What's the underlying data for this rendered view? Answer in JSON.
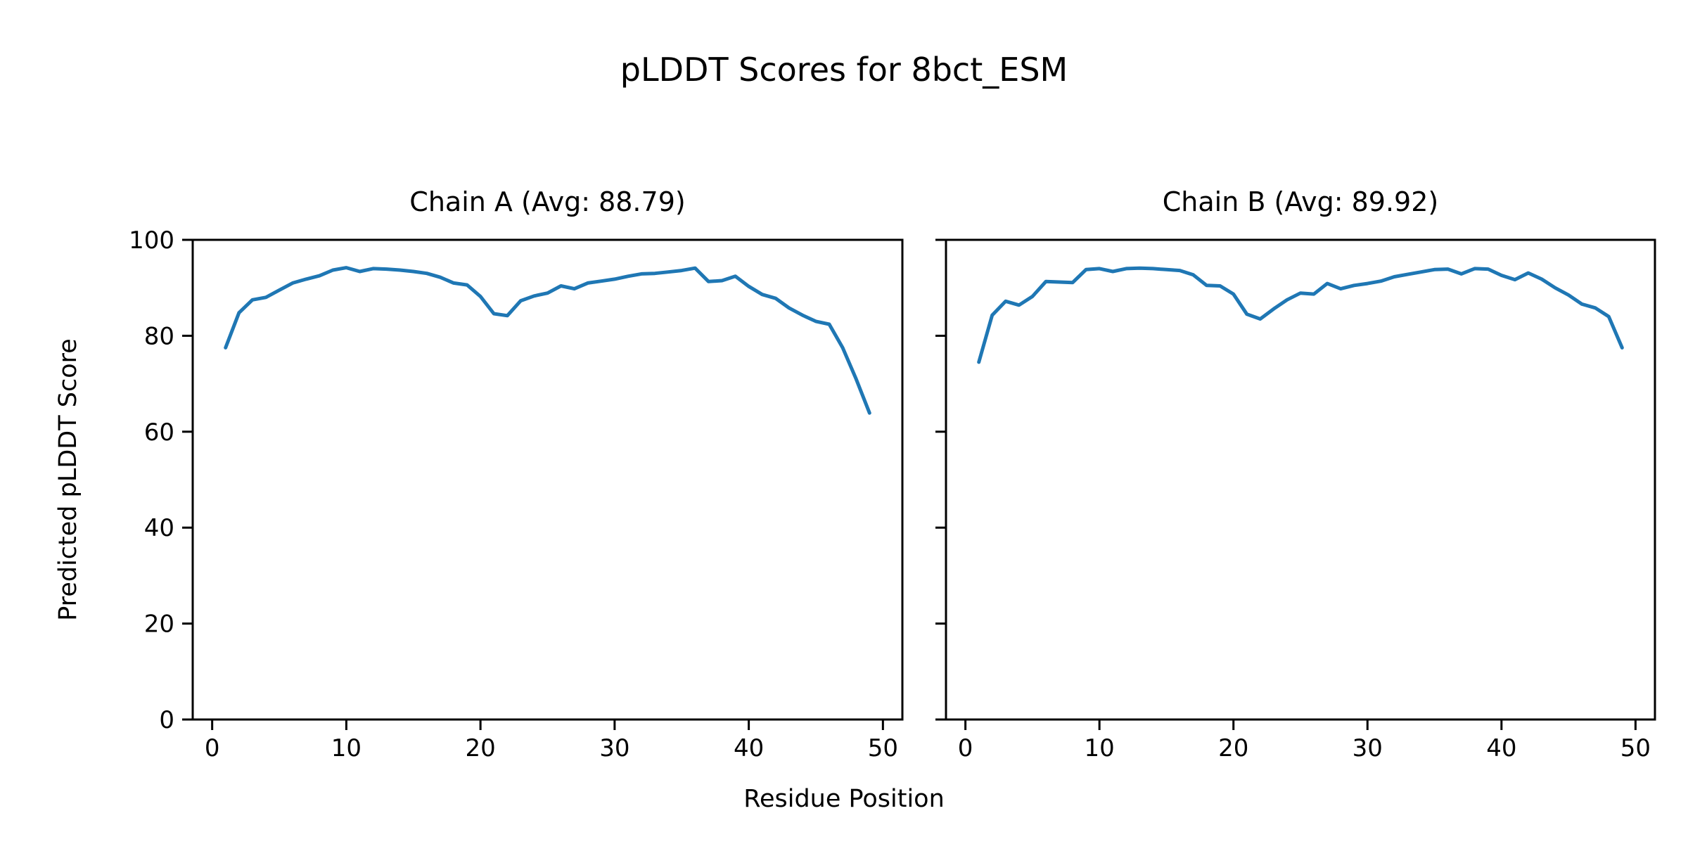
{
  "figure": {
    "title": "pLDDT Scores for 8bct_ESM",
    "xlabel": "Residue Position",
    "ylabel": "Predicted pLDDT Score"
  },
  "chart_data": [
    {
      "type": "line",
      "title": "Chain A (Avg: 88.79)",
      "chain": "A",
      "avg": 88.79,
      "line_color": "#1f77b4",
      "xlabel": "Residue Position",
      "ylabel": "Predicted pLDDT Score",
      "xlim": [
        -1.45,
        51.45
      ],
      "ylim": [
        0,
        100
      ],
      "xticks": [
        0,
        10,
        20,
        30,
        40,
        50
      ],
      "yticks": [
        0,
        20,
        40,
        60,
        80,
        100
      ],
      "grid": false,
      "show_ytick_labels": true,
      "x": [
        1,
        2,
        3,
        4,
        5,
        6,
        7,
        8,
        9,
        10,
        11,
        12,
        13,
        14,
        15,
        16,
        17,
        18,
        19,
        20,
        21,
        22,
        23,
        24,
        25,
        26,
        27,
        28,
        29,
        30,
        31,
        32,
        33,
        34,
        35,
        36,
        37,
        38,
        39,
        40,
        41,
        42,
        43,
        44,
        45,
        46,
        47,
        48,
        49
      ],
      "values": [
        77.5,
        84.8,
        87.5,
        88.0,
        89.5,
        91.0,
        91.8,
        92.5,
        93.7,
        94.2,
        93.4,
        94.0,
        93.9,
        93.7,
        93.4,
        93.0,
        92.2,
        91.0,
        90.6,
        88.2,
        84.6,
        84.2,
        87.3,
        88.3,
        88.9,
        90.4,
        89.8,
        91.0,
        91.4,
        91.8,
        92.4,
        92.9,
        93.0,
        93.3,
        93.6,
        94.1,
        91.3,
        91.5,
        92.4,
        90.3,
        88.6,
        87.8,
        85.8,
        84.3,
        83.0,
        82.4,
        77.5,
        71.0,
        63.9
      ]
    },
    {
      "type": "line",
      "title": "Chain B (Avg: 89.92)",
      "chain": "B",
      "avg": 89.92,
      "line_color": "#1f77b4",
      "xlabel": "Residue Position",
      "ylabel": "Predicted pLDDT Score",
      "xlim": [
        -1.45,
        51.45
      ],
      "ylim": [
        0,
        100
      ],
      "xticks": [
        0,
        10,
        20,
        30,
        40,
        50
      ],
      "yticks": [
        0,
        20,
        40,
        60,
        80,
        100
      ],
      "grid": false,
      "show_ytick_labels": false,
      "x": [
        1,
        2,
        3,
        4,
        5,
        6,
        7,
        8,
        9,
        10,
        11,
        12,
        13,
        14,
        15,
        16,
        17,
        18,
        19,
        20,
        21,
        22,
        23,
        24,
        25,
        26,
        27,
        28,
        29,
        30,
        31,
        32,
        33,
        34,
        35,
        36,
        37,
        38,
        39,
        40,
        41,
        42,
        43,
        44,
        45,
        46,
        47,
        48,
        49
      ],
      "values": [
        74.5,
        84.3,
        87.2,
        86.4,
        88.2,
        91.3,
        91.2,
        91.1,
        93.8,
        94.0,
        93.4,
        94.0,
        94.1,
        94.0,
        93.8,
        93.6,
        92.7,
        90.5,
        90.4,
        88.7,
        84.5,
        83.5,
        85.6,
        87.5,
        88.9,
        88.7,
        90.9,
        89.8,
        90.5,
        90.9,
        91.4,
        92.3,
        92.8,
        93.3,
        93.8,
        93.9,
        92.9,
        94.0,
        93.9,
        92.6,
        91.7,
        93.1,
        91.8,
        90.0,
        88.5,
        86.6,
        85.8,
        84.0,
        77.5
      ]
    }
  ]
}
